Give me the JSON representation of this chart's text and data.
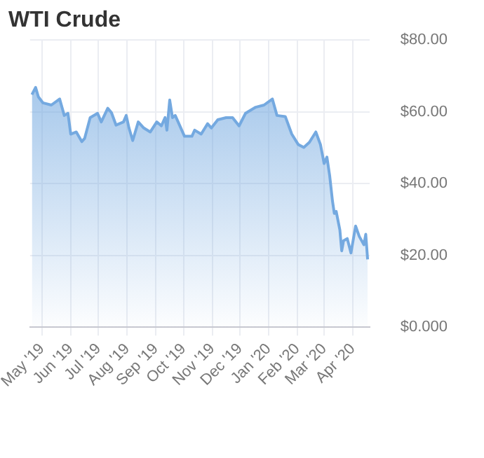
{
  "chart_data": {
    "type": "area",
    "title": "WTI Crude",
    "x": [
      "2019-04-20",
      "2019-04-24",
      "2019-04-27",
      "2019-05-02",
      "2019-05-11",
      "2019-05-20",
      "2019-05-25",
      "2019-05-29",
      "2019-06-01",
      "2019-06-07",
      "2019-06-13",
      "2019-06-16",
      "2019-06-22",
      "2019-06-30",
      "2019-07-04",
      "2019-07-11",
      "2019-07-15",
      "2019-07-20",
      "2019-07-28",
      "2019-07-31",
      "2019-08-03",
      "2019-08-07",
      "2019-08-13",
      "2019-08-19",
      "2019-08-26",
      "2019-09-02",
      "2019-09-07",
      "2019-09-11",
      "2019-09-13",
      "2019-09-16",
      "2019-09-19",
      "2019-09-22",
      "2019-10-02",
      "2019-10-10",
      "2019-10-13",
      "2019-10-20",
      "2019-10-27",
      "2019-10-31",
      "2019-11-07",
      "2019-11-16",
      "2019-11-23",
      "2019-11-30",
      "2019-12-07",
      "2019-12-18",
      "2019-12-27",
      "2020-01-05",
      "2020-01-10",
      "2020-01-19",
      "2020-01-26",
      "2020-02-02",
      "2020-02-08",
      "2020-02-14",
      "2020-02-21",
      "2020-02-26",
      "2020-03-01",
      "2020-03-04",
      "2020-03-07",
      "2020-03-10",
      "2020-03-12",
      "2020-03-14",
      "2020-03-18",
      "2020-03-20",
      "2020-03-22",
      "2020-03-26",
      "2020-03-30",
      "2020-04-04",
      "2020-04-08",
      "2020-04-13",
      "2020-04-15",
      "2020-04-17"
    ],
    "series": [
      {
        "color": "#74a9e0",
        "values": [
          64.8,
          66.8,
          64.2,
          62.5,
          61.9,
          63.6,
          59,
          59.6,
          53.8,
          54.4,
          51.7,
          52.6,
          58.4,
          59.6,
          57.2,
          61,
          59.8,
          56.3,
          57.2,
          59,
          55.5,
          52,
          57.2,
          55.5,
          54.4,
          57.2,
          56.1,
          58.4,
          54.9,
          63.3,
          58.4,
          59,
          53.2,
          53.2,
          54.9,
          53.8,
          56.7,
          55.5,
          57.8,
          58.4,
          58.4,
          56.1,
          59.6,
          61.3,
          61.9,
          63.6,
          59,
          58.7,
          53.8,
          50.9,
          50.1,
          51.5,
          54.4,
          50.9,
          45.6,
          47.4,
          42.2,
          35.2,
          31.7,
          32.3,
          27.1,
          21.3,
          24.1,
          24.7,
          20.7,
          28.2,
          25.3,
          23,
          25.9,
          18.9
        ]
      }
    ],
    "xlim": [
      "2019-04-18",
      "2020-04-19"
    ],
    "xticks": [
      {
        "value": "2019-05-01",
        "label": "May '19"
      },
      {
        "value": "2019-06-01",
        "label": "Jun '19"
      },
      {
        "value": "2019-07-01",
        "label": "Jul '19"
      },
      {
        "value": "2019-08-01",
        "label": "Aug '19"
      },
      {
        "value": "2019-09-01",
        "label": "Sep '19"
      },
      {
        "value": "2019-10-01",
        "label": "Oct '19"
      },
      {
        "value": "2019-11-01",
        "label": "Nov '19"
      },
      {
        "value": "2019-12-01",
        "label": "Dec '19"
      },
      {
        "value": "2020-01-01",
        "label": "Jan '20"
      },
      {
        "value": "2020-02-01",
        "label": "Feb '20"
      },
      {
        "value": "2020-03-01",
        "label": "Mar '20"
      },
      {
        "value": "2020-04-01",
        "label": "Apr '20"
      }
    ],
    "ylim": [
      0,
      80
    ],
    "yticks": [
      {
        "value": 0,
        "label": "$0.000"
      },
      {
        "value": 20,
        "label": "$20.00"
      },
      {
        "value": 40,
        "label": "$40.00"
      },
      {
        "value": 60,
        "label": "$60.00"
      },
      {
        "value": 80,
        "label": "$80.00"
      }
    ],
    "grid": true,
    "marker": "none",
    "line_style": "solid"
  }
}
